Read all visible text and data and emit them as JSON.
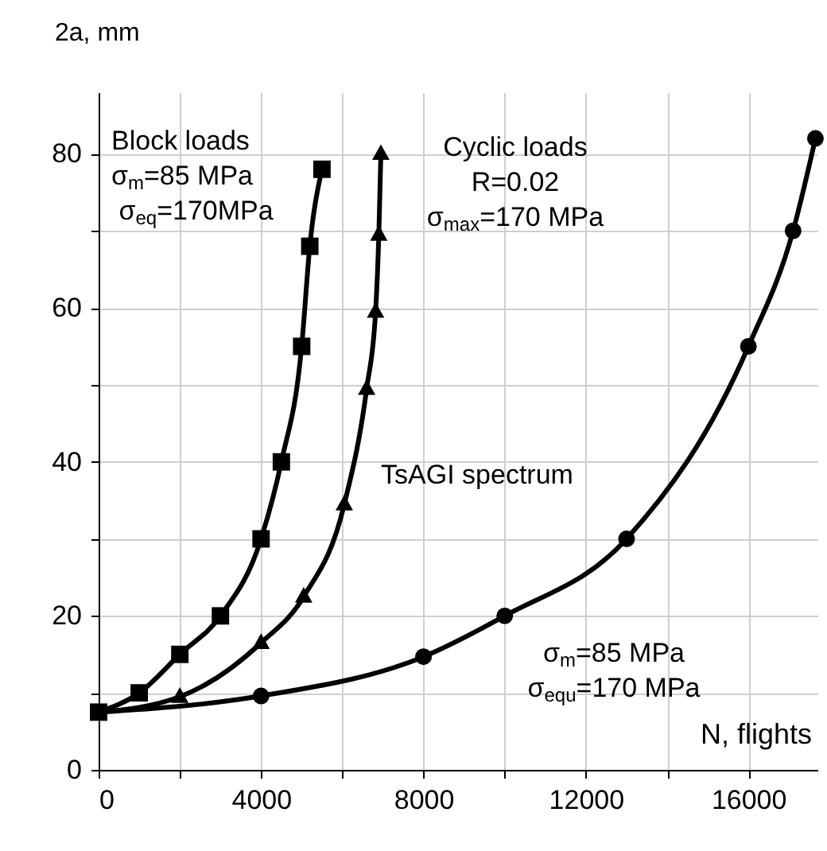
{
  "chart_data": {
    "type": "line",
    "xlabel": "N, flights",
    "ylabel": "2a, mm",
    "xlim": [
      0,
      17700
    ],
    "ylim": [
      0,
      88
    ],
    "xticks": [
      0,
      {
        "value": 2000,
        "label": null
      },
      4000,
      {
        "value": 6000,
        "label": null
      },
      8000,
      {
        "value": 10000,
        "label": null
      },
      12000,
      {
        "value": 14000,
        "label": null
      },
      16000
    ],
    "yticks": [
      0,
      {
        "value": 10,
        "label": null
      },
      20,
      {
        "value": 30,
        "label": null
      },
      40,
      {
        "value": 50,
        "label": null
      },
      60,
      {
        "value": 70,
        "label": null
      },
      80
    ],
    "grid": true,
    "line_style": "solid",
    "series": [
      {
        "color": "#000000",
        "marker": "square",
        "x": [
          0,
          1000,
          2000,
          3000,
          4000,
          4500,
          5000,
          5200,
          5500
        ],
        "values": [
          7.5,
          10,
          15,
          20,
          30,
          40,
          55,
          68,
          78
        ]
      },
      {
        "color": "#000000",
        "marker": "triangle",
        "x": [
          0,
          2000,
          4000,
          5050,
          6050,
          6600,
          6820,
          6900,
          6950
        ],
        "values": [
          7.5,
          9.5,
          16.5,
          22.5,
          34.5,
          49.5,
          59.5,
          69.5,
          80
        ]
      },
      {
        "color": "#000000",
        "marker": "circle",
        "x": [
          0,
          4000,
          8000,
          10000,
          13000,
          16000,
          17100,
          17650
        ],
        "values": [
          7.5,
          9.6,
          14.7,
          20,
          30,
          55,
          70,
          82
        ]
      }
    ],
    "annotations": [
      "Block loads\nσ$_{m}$=85 MPa\n σ$_{eq}$=170MPa",
      "Cyclic loads\nR=0.02\nσ$_{max}$=170 MPa",
      "TsAGI spectrum",
      "σ$_{m}$=85 MPa\nσ$_{equ}$=170 MPa"
    ]
  }
}
